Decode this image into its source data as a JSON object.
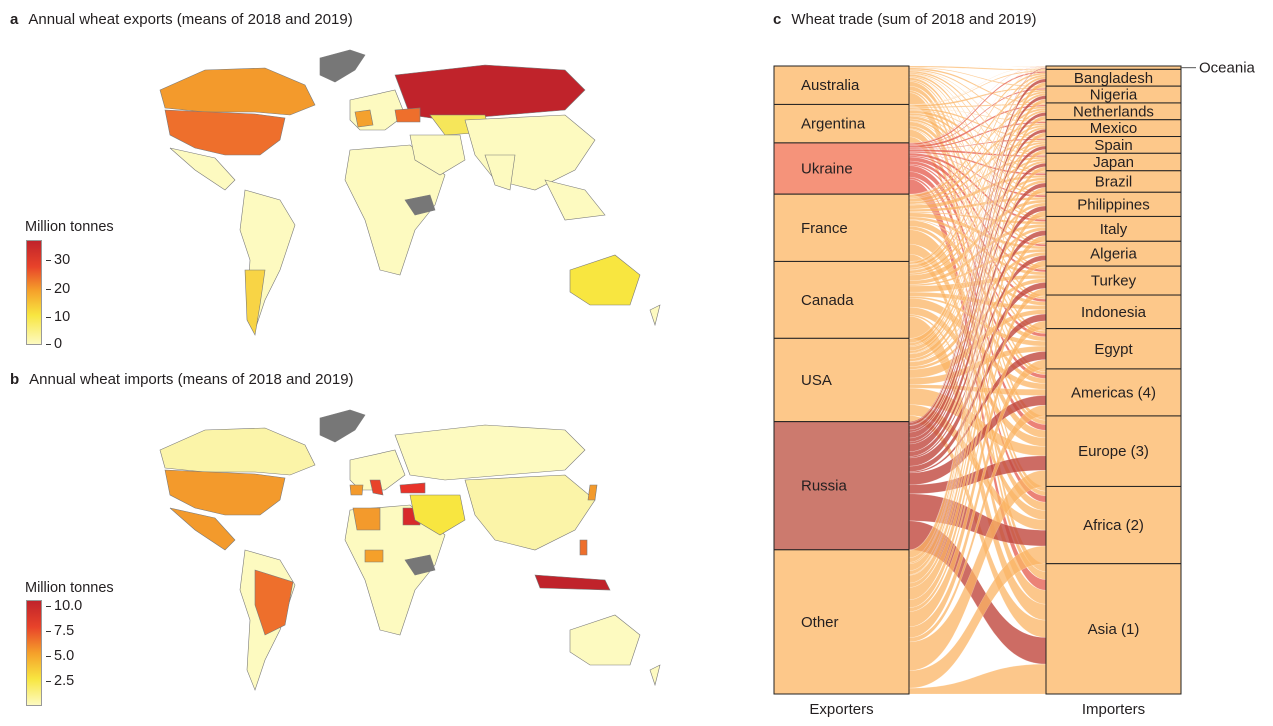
{
  "panel_a": {
    "letter": "a",
    "title": "Annual wheat exports (means of 2018 and 2019)",
    "legend_title": "Million tonnes",
    "legend_ticks": [
      "30",
      "20",
      "10",
      "0"
    ],
    "colors": {
      "low": "#fdfac0",
      "mid": "#f5a02a",
      "high": "#c0232b",
      "ocean": "#ffffff",
      "no_data": "#777777"
    }
  },
  "panel_b": {
    "letter": "b",
    "title": "Annual wheat imports (means of 2018 and 2019)",
    "legend_title": "Million tonnes",
    "legend_ticks": [
      "10.0",
      "7.5",
      "5.0",
      "2.5"
    ]
  },
  "panel_c": {
    "letter": "c",
    "title": "Wheat trade (sum of 2018 and 2019)",
    "exporters_label": "Exporters",
    "importers_label": "Importers",
    "colors": {
      "node": "#fdc88a",
      "flow": "#fbb464",
      "ukraine": "#f5937a",
      "russia": "#cc7a6e",
      "flow_dark": "#c0473d"
    }
  },
  "chart_data": {
    "type": "sankey",
    "title": "Wheat trade (sum of 2018 and 2019)",
    "exporters": [
      {
        "name": "Australia",
        "share": 0.06
      },
      {
        "name": "Argentina",
        "share": 0.06
      },
      {
        "name": "Ukraine",
        "share": 0.08
      },
      {
        "name": "France",
        "share": 0.105
      },
      {
        "name": "Canada",
        "share": 0.12
      },
      {
        "name": "USA",
        "share": 0.13
      },
      {
        "name": "Russia",
        "share": 0.2
      },
      {
        "name": "Other",
        "share": 0.225
      }
    ],
    "importers": [
      {
        "name": "Oceania",
        "share": 0.005
      },
      {
        "name": "Bangladesh",
        "share": 0.025
      },
      {
        "name": "Nigeria",
        "share": 0.025
      },
      {
        "name": "Netherlands",
        "share": 0.025
      },
      {
        "name": "Mexico",
        "share": 0.025
      },
      {
        "name": "Spain",
        "share": 0.025
      },
      {
        "name": "Japan",
        "share": 0.026
      },
      {
        "name": "Brazil",
        "share": 0.032
      },
      {
        "name": "Philippines",
        "share": 0.036
      },
      {
        "name": "Italy",
        "share": 0.037
      },
      {
        "name": "Algeria",
        "share": 0.037
      },
      {
        "name": "Turkey",
        "share": 0.043
      },
      {
        "name": "Indonesia",
        "share": 0.05
      },
      {
        "name": "Egypt",
        "share": 0.06
      },
      {
        "name": "Americas (4)",
        "share": 0.07
      },
      {
        "name": "Europe (3)",
        "share": 0.105
      },
      {
        "name": "Africa (2)",
        "share": 0.115
      },
      {
        "name": "Asia (1)",
        "share": 0.194
      }
    ]
  }
}
